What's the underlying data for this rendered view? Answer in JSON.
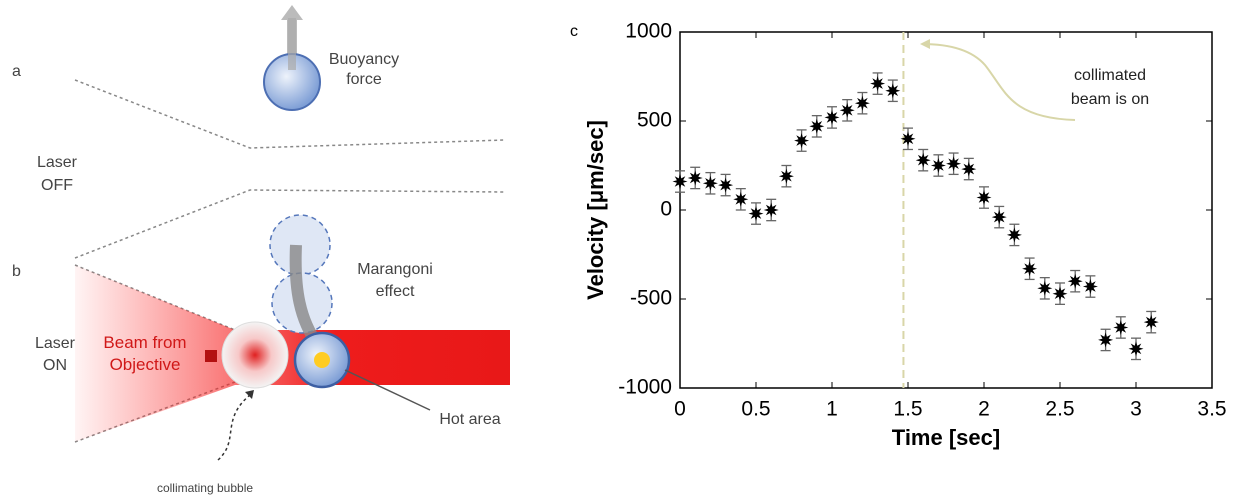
{
  "diagram": {
    "panel_a": "a",
    "buoyancy": [
      "Buoyancy",
      "force"
    ],
    "laser_off": [
      "Laser",
      "OFF"
    ],
    "panel_b": "b",
    "marangoni": [
      "Marangoni",
      "effect"
    ],
    "laser_on": [
      "Laser",
      "ON"
    ],
    "beam": [
      "Beam from",
      "Objective"
    ],
    "hot_area": "Hot area",
    "collimating": "collimating bubble"
  },
  "chart_data": {
    "type": "scatter",
    "panel": "c",
    "x_label": "Time [sec]",
    "y_label": "Velocity [μm/sec]",
    "annotation": [
      "collimated",
      "beam is on"
    ],
    "event_x": 1.47,
    "x": [
      0,
      0.1,
      0.2,
      0.3,
      0.4,
      0.5,
      0.6,
      0.7,
      0.8,
      0.9,
      1.0,
      1.1,
      1.2,
      1.3,
      1.4,
      1.5,
      1.6,
      1.7,
      1.8,
      1.9,
      2.0,
      2.1,
      2.2,
      2.3,
      2.4,
      2.5,
      2.6,
      2.7,
      2.8,
      2.9,
      3.0,
      3.1
    ],
    "values": [
      160,
      180,
      150,
      140,
      60,
      -20,
      0,
      190,
      390,
      470,
      520,
      560,
      600,
      710,
      670,
      400,
      280,
      250,
      260,
      230,
      70,
      -40,
      -140,
      -330,
      -440,
      -470,
      -400,
      -430,
      -730,
      -660,
      -780,
      -630
    ],
    "errors": [
      60,
      60,
      60,
      60,
      60,
      60,
      60,
      60,
      60,
      60,
      60,
      60,
      60,
      60,
      60,
      60,
      60,
      60,
      60,
      60,
      60,
      60,
      60,
      60,
      60,
      60,
      60,
      60,
      60,
      60,
      60,
      60
    ],
    "color": "#000000",
    "xlim": [
      0,
      3.5
    ],
    "xticks": [
      0,
      0.5,
      1,
      1.5,
      2,
      2.5,
      3,
      3.5
    ],
    "ylim": [
      -1000,
      1000
    ],
    "yticks": [
      -1000,
      -500,
      0,
      500,
      1000
    ]
  }
}
